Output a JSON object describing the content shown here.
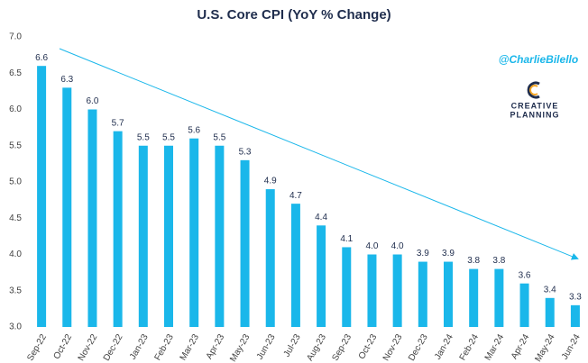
{
  "chart_data": {
    "type": "bar",
    "title": "U.S. Core CPI (YoY % Change)",
    "annotations": [
      "@CharlieBilello",
      "CREATIVE",
      "PLANNING"
    ],
    "categories": [
      "Sep-22",
      "Oct-22",
      "Nov-22",
      "Dec-22",
      "Jan-23",
      "Feb-23",
      "Mar-23",
      "Apr-23",
      "May-23",
      "Jun-23",
      "Jul-23",
      "Aug-23",
      "Sep-23",
      "Oct-23",
      "Nov-23",
      "Dec-23",
      "Jan-24",
      "Feb-24",
      "Mar-24",
      "Apr-24",
      "May-24",
      "Jun-24"
    ],
    "values": [
      6.6,
      6.3,
      6.0,
      5.7,
      5.5,
      5.5,
      5.6,
      5.5,
      5.3,
      4.9,
      4.7,
      4.4,
      4.1,
      4.0,
      4.0,
      3.9,
      3.9,
      3.8,
      3.8,
      3.6,
      3.4,
      3.3
    ],
    "value_labels": [
      "6.6",
      "6.3",
      "6.0",
      "5.7",
      "5.5",
      "5.5",
      "5.6",
      "5.5",
      "5.3",
      "4.9",
      "4.7",
      "4.4",
      "4.1",
      "4.0",
      "4.0",
      "3.9",
      "3.9",
      "3.8",
      "3.8",
      "3.6",
      "3.4",
      "3.3"
    ],
    "color": "#1ab7ea",
    "ylim": [
      3,
      7
    ],
    "yticks": [
      {
        "value": 3,
        "label": "3.0"
      },
      3.5,
      {
        "value": 4,
        "label": "4.0"
      },
      4.5,
      {
        "value": 5,
        "label": "5.0"
      },
      5.5,
      {
        "value": 6,
        "label": "6.0"
      },
      6.5,
      {
        "value": 7,
        "label": "7.0"
      }
    ],
    "grid": false
  }
}
